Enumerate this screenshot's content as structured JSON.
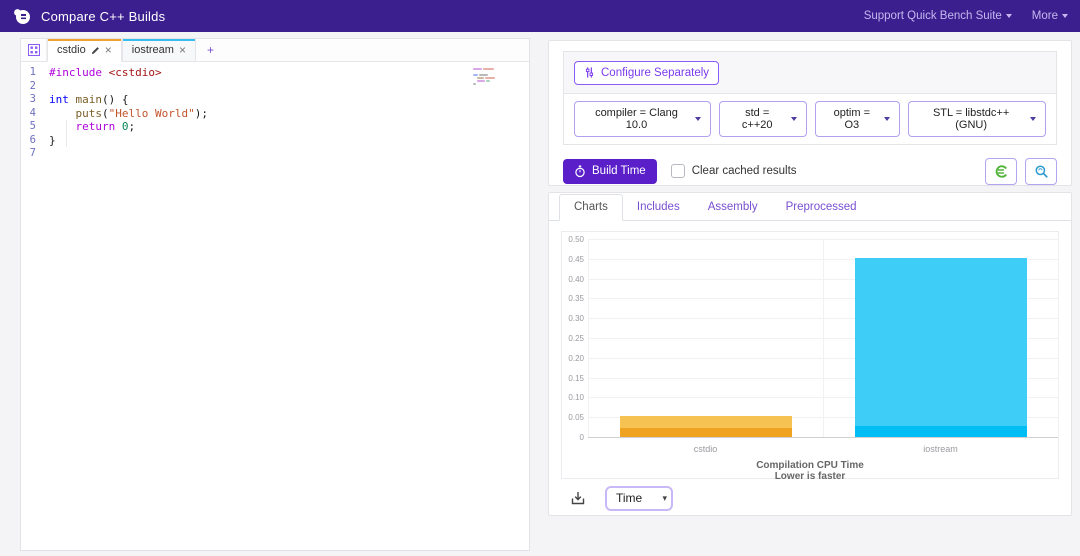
{
  "navbar": {
    "title": "Compare C++ Builds",
    "links": [
      {
        "label": "Support Quick Bench Suite"
      },
      {
        "label": "More"
      }
    ]
  },
  "editor": {
    "tabs": [
      {
        "label": "cstdio",
        "accent": "#f0a030",
        "active": true,
        "modified": true
      },
      {
        "label": "iostream",
        "accent": "#38bdf0",
        "active": false
      },
      {
        "label": "+"
      }
    ],
    "code_lines": [
      [
        {
          "t": "#include",
          "c": "kwd"
        },
        {
          "t": " ",
          "c": "pl"
        },
        {
          "t": "<cstdio>",
          "c": "str"
        }
      ],
      [],
      [
        {
          "t": "int",
          "c": "kw"
        },
        {
          "t": " ",
          "c": "pl"
        },
        {
          "t": "main",
          "c": "fn"
        },
        {
          "t": "() {",
          "c": "pl"
        }
      ],
      [
        {
          "t": "    ",
          "c": "pl"
        },
        {
          "t": "puts",
          "c": "fn"
        },
        {
          "t": "(",
          "c": "pl"
        },
        {
          "t": "\"Hello World\"",
          "c": "str2"
        },
        {
          "t": ");",
          "c": "pl"
        }
      ],
      [
        {
          "t": "    ",
          "c": "pl"
        },
        {
          "t": "return",
          "c": "kwd"
        },
        {
          "t": " ",
          "c": "pl"
        },
        {
          "t": "0",
          "c": "num"
        },
        {
          "t": ";",
          "c": "pl"
        }
      ],
      [
        {
          "t": "}",
          "c": "pl"
        }
      ],
      []
    ]
  },
  "config": {
    "configure_label": "Configure Separately",
    "dropdowns": [
      "compiler = Clang 10.0",
      "std = c++20",
      "optim = O3",
      "STL = libstdc++(GNU)"
    ]
  },
  "run": {
    "build_label": "Build Time",
    "checkbox_label": "Clear cached results"
  },
  "result_tabs": [
    {
      "label": "Charts",
      "active": true
    },
    {
      "label": "Includes",
      "active": false
    },
    {
      "label": "Assembly",
      "active": false
    },
    {
      "label": "Preprocessed",
      "active": false
    }
  ],
  "chart_data": {
    "type": "bar",
    "stacked": true,
    "title": "Compilation CPU Time",
    "subtitle": "Lower is faster",
    "categories": [
      "cstdio",
      "iostream"
    ],
    "series": [
      {
        "name": "base-segment",
        "values": [
          0.023,
          0.027
        ],
        "colors": [
          "#efa321",
          "#00bdf3"
        ]
      },
      {
        "name": "upper-segment",
        "values": [
          0.029,
          0.425
        ],
        "colors": [
          "#f6c352",
          "#3ecdf7"
        ]
      }
    ],
    "totals": [
      0.052,
      0.452
    ],
    "ylim": [
      0,
      0.5
    ],
    "ytick_step": 0.05,
    "ytick_labels": [
      "0",
      "0.05",
      "0.10",
      "0.15",
      "0.20",
      "0.25",
      "0.30",
      "0.35",
      "0.40",
      "0.45",
      "0.50"
    ],
    "grid": true,
    "legend": false
  },
  "chart_footer": {
    "metric_selected": "Time"
  },
  "colors": {
    "navbar_bg": "#3b1f8e",
    "accent_purple": "#7c3aed",
    "build_button": "#5a1fc8",
    "tab_orange": "#f0a030",
    "tab_cyan": "#38bdf0"
  }
}
